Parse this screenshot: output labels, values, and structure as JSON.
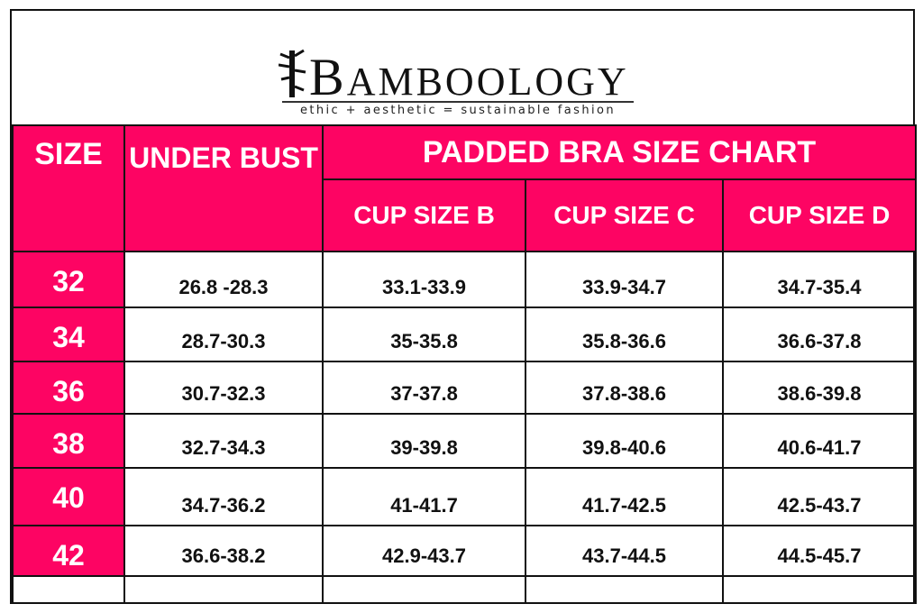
{
  "brand": {
    "name_initial": "B",
    "name_rest": "AMBOOLOGY",
    "tagline": "ethic + aesthetic = sustainable fashion",
    "accent": "#fd0463"
  },
  "header": {
    "size": "SIZE",
    "under_bust": "UNDER BUST",
    "title": "PADDED BRA SIZE CHART",
    "cups": [
      "CUP SIZE B",
      "CUP SIZE C",
      "CUP SIZE D"
    ]
  },
  "rows": [
    {
      "size": "32",
      "under": "26.8 -28.3",
      "b": "33.1-33.9",
      "c": "33.9-34.7",
      "d": "34.7-35.4"
    },
    {
      "size": "34",
      "under": "28.7-30.3",
      "b": "35-35.8",
      "c": "35.8-36.6",
      "d": "36.6-37.8"
    },
    {
      "size": "36",
      "under": "30.7-32.3",
      "b": "37-37.8",
      "c": "37.8-38.6",
      "d": "38.6-39.8"
    },
    {
      "size": "38",
      "under": "32.7-34.3",
      "b": "39-39.8",
      "c": "39.8-40.6",
      "d": "40.6-41.7"
    },
    {
      "size": "40",
      "under": "34.7-36.2",
      "b": "41-41.7",
      "c": "41.7-42.5",
      "d": "42.5-43.7"
    },
    {
      "size": "42",
      "under": "36.6-38.2",
      "b": "42.9-43.7",
      "c": "43.7-44.5",
      "d": "44.5-45.7"
    }
  ]
}
